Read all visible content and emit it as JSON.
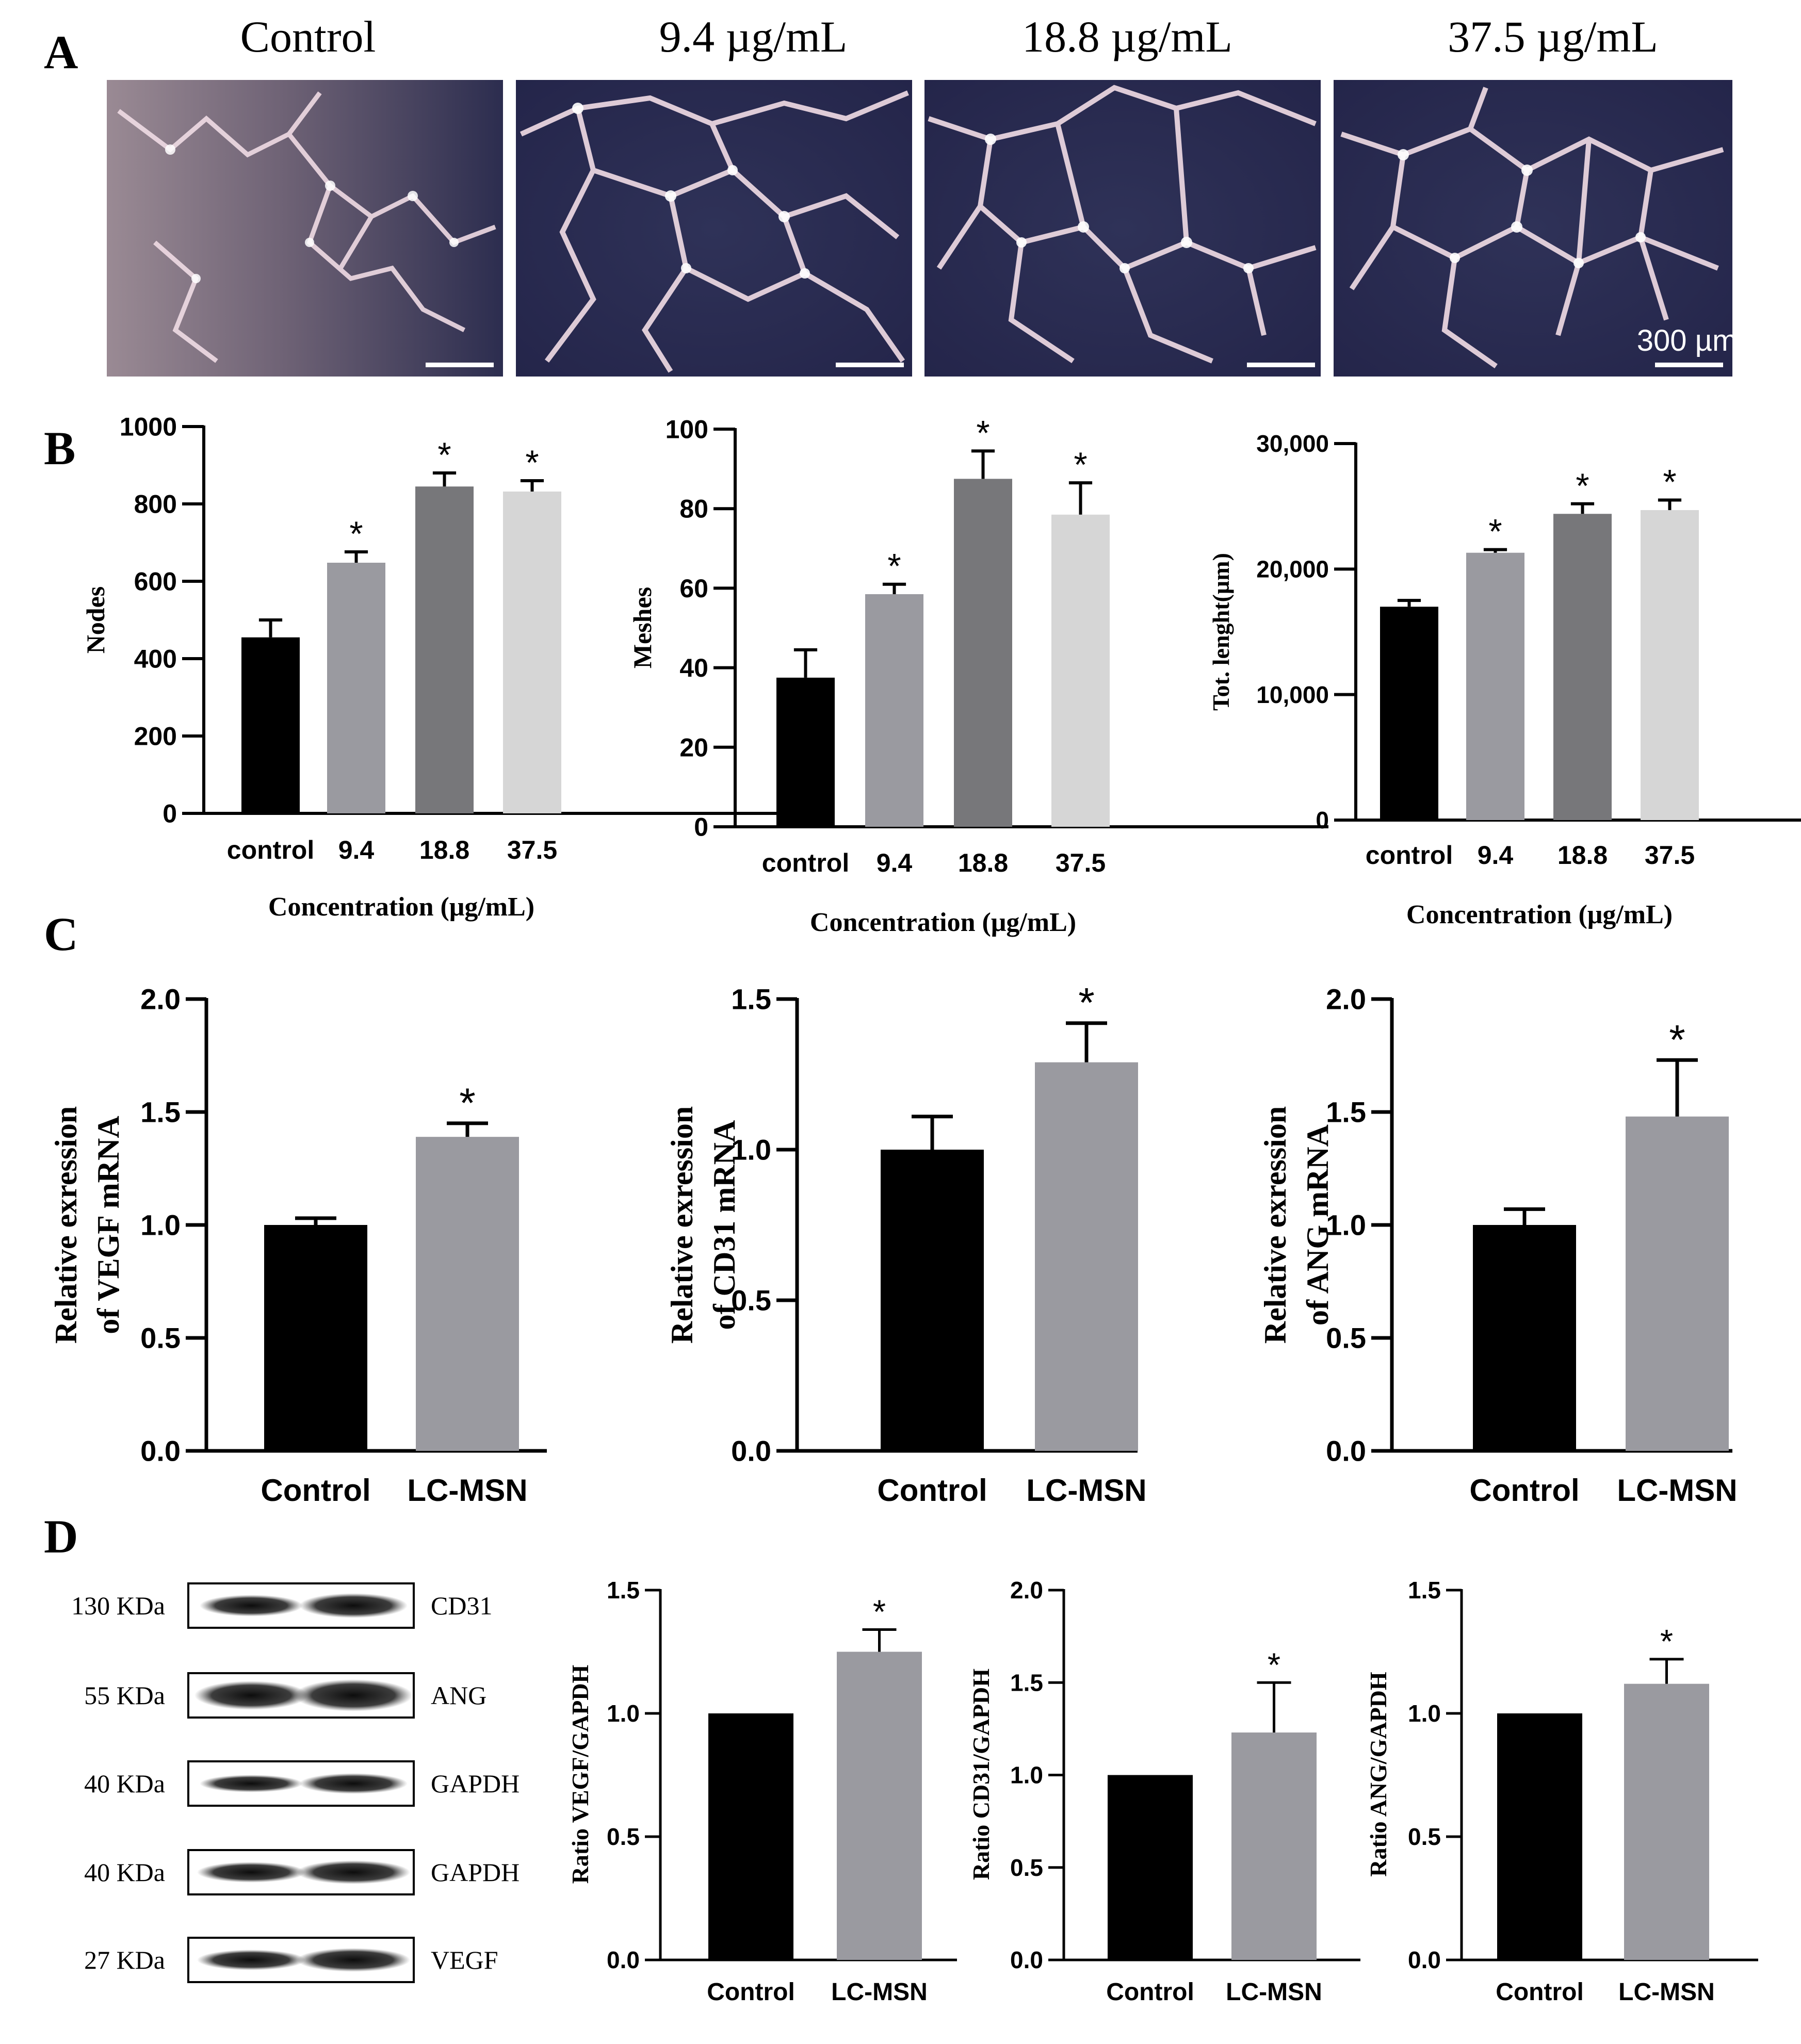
{
  "panel_letters": [
    "A",
    "B",
    "C",
    "D"
  ],
  "panel_a": {
    "titles": [
      "Control",
      "9.4 µg/mL",
      "18.8 µg/mL",
      "37.5 µg/mL"
    ],
    "scale_bar_label": "300 µm",
    "image_colors": {
      "dark": "#2a2b4e",
      "bright_network": "#f4dde6",
      "control_bg": "#7d6f80"
    }
  },
  "chart_data": [
    {
      "id": "B1",
      "type": "bar",
      "categories": [
        "control",
        "9.4",
        "18.8",
        "37.5"
      ],
      "values": [
        455,
        648,
        845,
        832
      ],
      "errors": [
        45,
        28,
        35,
        28
      ],
      "significant": [
        false,
        true,
        true,
        true
      ],
      "ylabel": "Nodes",
      "xlabel": "Concentration (μg/mL)",
      "ylim": [
        0,
        1000
      ],
      "yticks": [
        "0",
        "200",
        "400",
        "600",
        "800",
        "1000"
      ],
      "colors": [
        "#000000",
        "#9a9aa0",
        "#77777a",
        "#d6d6d6"
      ]
    },
    {
      "id": "B2",
      "type": "bar",
      "categories": [
        "control",
        "9.4",
        "18.8",
        "37.5"
      ],
      "values": [
        37.5,
        58.5,
        87.5,
        78.5
      ],
      "errors": [
        7,
        2.5,
        7,
        8
      ],
      "significant": [
        false,
        true,
        true,
        true
      ],
      "ylabel": "Meshes",
      "xlabel": "Concentration (μg/mL)",
      "ylim": [
        0,
        100
      ],
      "yticks": [
        "0",
        "20",
        "40",
        "60",
        "80",
        "100"
      ],
      "colors": [
        "#000000",
        "#9a9aa0",
        "#77777a",
        "#d6d6d6"
      ]
    },
    {
      "id": "B3",
      "type": "bar",
      "categories": [
        "control",
        "9.4",
        "18.8",
        "37.5"
      ],
      "values": [
        17000,
        21300,
        24400,
        24700
      ],
      "errors": [
        500,
        250,
        800,
        800
      ],
      "significant": [
        false,
        true,
        true,
        true
      ],
      "ylabel": "Tot. lenght(µm)",
      "xlabel": "Concentration (μg/mL)",
      "ylim": [
        0,
        30000
      ],
      "yticks": [
        "0",
        "10,000",
        "20,000",
        "30,000"
      ],
      "colors": [
        "#000000",
        "#9a9aa0",
        "#77777a",
        "#d6d6d6"
      ]
    },
    {
      "id": "C1",
      "type": "bar",
      "categories": [
        "Control",
        "LC-MSN"
      ],
      "values": [
        1.0,
        1.39
      ],
      "errors": [
        0.03,
        0.06
      ],
      "significant": [
        false,
        true
      ],
      "ylabel": [
        "Relative exression",
        "of VEGF mRNA"
      ],
      "ylim": [
        0,
        2.0
      ],
      "yticks": [
        "0.0",
        "0.5",
        "1.0",
        "1.5",
        "2.0"
      ],
      "colors": [
        "#000000",
        "#9a9aa0"
      ]
    },
    {
      "id": "C2",
      "type": "bar",
      "categories": [
        "Control",
        "LC-MSN"
      ],
      "values": [
        1.0,
        1.29
      ],
      "errors": [
        0.11,
        0.13
      ],
      "significant": [
        false,
        true
      ],
      "ylabel": [
        "Relative exression",
        "of CD31 mRNA"
      ],
      "ylim": [
        0,
        1.5
      ],
      "yticks": [
        "0.0",
        "0.5",
        "1.0",
        "1.5"
      ],
      "colors": [
        "#000000",
        "#9a9aa0"
      ]
    },
    {
      "id": "C3",
      "type": "bar",
      "categories": [
        "Control",
        "LC-MSN"
      ],
      "values": [
        1.0,
        1.48
      ],
      "errors": [
        0.07,
        0.25
      ],
      "significant": [
        false,
        true
      ],
      "ylabel": [
        "Relative exression",
        "of ANG mRNA"
      ],
      "ylim": [
        0,
        2.0
      ],
      "yticks": [
        "0.0",
        "0.5",
        "1.0",
        "1.5",
        "2.0"
      ],
      "colors": [
        "#000000",
        "#9a9aa0"
      ]
    },
    {
      "id": "D1",
      "type": "bar",
      "categories": [
        "Control",
        "LC-MSN"
      ],
      "values": [
        1.0,
        1.25
      ],
      "errors": [
        0,
        0.09
      ],
      "significant": [
        false,
        true
      ],
      "ylabel": "Ratio VEGF/GAPDH",
      "ylim": [
        0,
        1.5
      ],
      "yticks": [
        "0.0",
        "0.5",
        "1.0",
        "1.5"
      ],
      "colors": [
        "#000000",
        "#9a9aa0"
      ]
    },
    {
      "id": "D2",
      "type": "bar",
      "categories": [
        "Control",
        "LC-MSN"
      ],
      "values": [
        1.0,
        1.23
      ],
      "errors": [
        0,
        0.27
      ],
      "significant": [
        false,
        true
      ],
      "ylabel": "Ratio CD31/GAPDH",
      "ylim": [
        0,
        2.0
      ],
      "yticks": [
        "0.0",
        "0.5",
        "1.0",
        "1.5",
        "2.0"
      ],
      "colors": [
        "#000000",
        "#9a9aa0"
      ]
    },
    {
      "id": "D3",
      "type": "bar",
      "categories": [
        "Control",
        "LC-MSN"
      ],
      "values": [
        1.0,
        1.12
      ],
      "errors": [
        0,
        0.1
      ],
      "significant": [
        false,
        true
      ],
      "ylabel": "Ratio ANG/GAPDH",
      "ylim": [
        0,
        1.5
      ],
      "yticks": [
        "0.0",
        "0.5",
        "1.0",
        "1.5"
      ],
      "colors": [
        "#000000",
        "#9a9aa0"
      ]
    }
  ],
  "significance_marker": "*",
  "western_blot": {
    "rows": [
      {
        "size": "130 KDa",
        "protein": "CD31"
      },
      {
        "size": "55 KDa",
        "protein": "ANG"
      },
      {
        "size": "40 KDa",
        "protein": "GAPDH"
      },
      {
        "size": "40 KDa",
        "protein": "GAPDH"
      },
      {
        "size": "27 KDa",
        "protein": "VEGF"
      }
    ]
  }
}
